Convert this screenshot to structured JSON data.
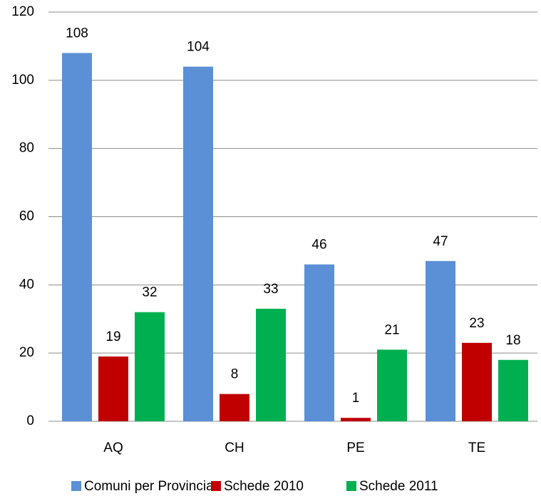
{
  "chart_data": {
    "type": "bar",
    "categories": [
      "AQ",
      "CH",
      "PE",
      "TE"
    ],
    "series": [
      {
        "name": "Comuni per Provincia",
        "color": "#5b8fd6",
        "values": [
          108,
          104,
          46,
          47
        ]
      },
      {
        "name": "Schede 2010",
        "color": "#c00000",
        "values": [
          19,
          8,
          1,
          23
        ]
      },
      {
        "name": "Schede 2011",
        "color": "#00b050",
        "values": [
          32,
          33,
          21,
          18
        ]
      }
    ],
    "ylim": [
      0,
      120
    ],
    "yticks": [
      0,
      20,
      40,
      60,
      80,
      100,
      120
    ],
    "grid": true,
    "legend": "bottom"
  }
}
